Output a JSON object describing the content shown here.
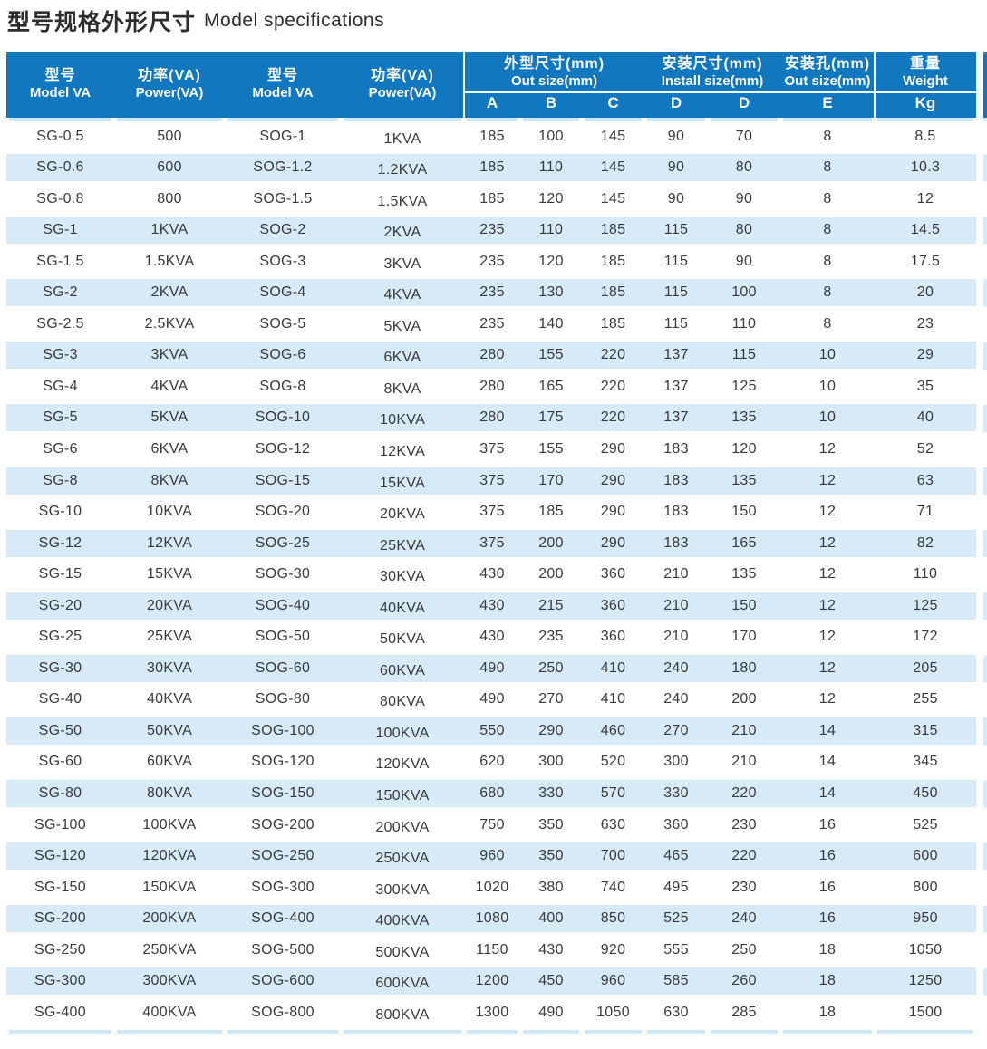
{
  "title": {
    "zh": "型号规格外形尺寸",
    "en": "Model specifications"
  },
  "header": {
    "model1": {
      "zh": "型号",
      "en": "Model VA"
    },
    "power1": {
      "zh": "功率(VA)",
      "en": "Power(VA)"
    },
    "model2": {
      "zh": "型号",
      "en": "Model VA"
    },
    "power2": {
      "zh": "功率(VA)",
      "en": "Power(VA)"
    },
    "group_out": {
      "zh": "外型尺寸(mm)",
      "en": "Out size(mm)"
    },
    "group_install": {
      "zh": "安装尺寸(mm)",
      "en": "Install size(mm)"
    },
    "group_hole": {
      "zh": "安装孔(mm)",
      "en": "Out size(mm)"
    },
    "group_weight": {
      "zh": "重量",
      "en": "Weight"
    },
    "letters": [
      "A",
      "B",
      "C",
      "D",
      "D",
      "E",
      "Kg"
    ]
  },
  "columns": [
    "model_sg",
    "power_sg",
    "model_sog",
    "power_sog",
    "A",
    "B",
    "C",
    "D",
    "D2",
    "E",
    "weight_kg"
  ],
  "rows": [
    [
      "SG-0.5",
      "500",
      "SOG-1",
      "1KVA",
      "185",
      "100",
      "145",
      "90",
      "70",
      "8",
      "8.5"
    ],
    [
      "SG-0.6",
      "600",
      "SOG-1.2",
      "1.2KVA",
      "185",
      "110",
      "145",
      "90",
      "80",
      "8",
      "10.3"
    ],
    [
      "SG-0.8",
      "800",
      "SOG-1.5",
      "1.5KVA",
      "185",
      "120",
      "145",
      "90",
      "90",
      "8",
      "12"
    ],
    [
      "SG-1",
      "1KVA",
      "SOG-2",
      "2KVA",
      "235",
      "110",
      "185",
      "115",
      "80",
      "8",
      "14.5"
    ],
    [
      "SG-1.5",
      "1.5KVA",
      "SOG-3",
      "3KVA",
      "235",
      "120",
      "185",
      "115",
      "90",
      "8",
      "17.5"
    ],
    [
      "SG-2",
      "2KVA",
      "SOG-4",
      "4KVA",
      "235",
      "130",
      "185",
      "115",
      "100",
      "8",
      "20"
    ],
    [
      "SG-2.5",
      "2.5KVA",
      "SOG-5",
      "5KVA",
      "235",
      "140",
      "185",
      "115",
      "110",
      "8",
      "23"
    ],
    [
      "SG-3",
      "3KVA",
      "SOG-6",
      "6KVA",
      "280",
      "155",
      "220",
      "137",
      "115",
      "10",
      "29"
    ],
    [
      "SG-4",
      "4KVA",
      "SOG-8",
      "8KVA",
      "280",
      "165",
      "220",
      "137",
      "125",
      "10",
      "35"
    ],
    [
      "SG-5",
      "5KVA",
      "SOG-10",
      "10KVA",
      "280",
      "175",
      "220",
      "137",
      "135",
      "10",
      "40"
    ],
    [
      "SG-6",
      "6KVA",
      "SOG-12",
      "12KVA",
      "375",
      "155",
      "290",
      "183",
      "120",
      "12",
      "52"
    ],
    [
      "SG-8",
      "8KVA",
      "SOG-15",
      "15KVA",
      "375",
      "170",
      "290",
      "183",
      "135",
      "12",
      "63"
    ],
    [
      "SG-10",
      "10KVA",
      "SOG-20",
      "20KVA",
      "375",
      "185",
      "290",
      "183",
      "150",
      "12",
      "71"
    ],
    [
      "SG-12",
      "12KVA",
      "SOG-25",
      "25KVA",
      "375",
      "200",
      "290",
      "183",
      "165",
      "12",
      "82"
    ],
    [
      "SG-15",
      "15KVA",
      "SOG-30",
      "30KVA",
      "430",
      "200",
      "360",
      "210",
      "135",
      "12",
      "110"
    ],
    [
      "SG-20",
      "20KVA",
      "SOG-40",
      "40KVA",
      "430",
      "215",
      "360",
      "210",
      "150",
      "12",
      "125"
    ],
    [
      "SG-25",
      "25KVA",
      "SOG-50",
      "50KVA",
      "430",
      "235",
      "360",
      "210",
      "170",
      "12",
      "172"
    ],
    [
      "SG-30",
      "30KVA",
      "SOG-60",
      "60KVA",
      "490",
      "250",
      "410",
      "240",
      "180",
      "12",
      "205"
    ],
    [
      "SG-40",
      "40KVA",
      "SOG-80",
      "80KVA",
      "490",
      "270",
      "410",
      "240",
      "200",
      "12",
      "255"
    ],
    [
      "SG-50",
      "50KVA",
      "SOG-100",
      "100KVA",
      "550",
      "290",
      "460",
      "270",
      "210",
      "14",
      "315"
    ],
    [
      "SG-60",
      "60KVA",
      "SOG-120",
      "120KVA",
      "620",
      "300",
      "520",
      "300",
      "210",
      "14",
      "345"
    ],
    [
      "SG-80",
      "80KVA",
      "SOG-150",
      "150KVA",
      "680",
      "330",
      "570",
      "330",
      "220",
      "14",
      "450"
    ],
    [
      "SG-100",
      "100KVA",
      "SOG-200",
      "200KVA",
      "750",
      "350",
      "630",
      "360",
      "230",
      "16",
      "525"
    ],
    [
      "SG-120",
      "120KVA",
      "SOG-250",
      "250KVA",
      "960",
      "350",
      "700",
      "465",
      "220",
      "16",
      "600"
    ],
    [
      "SG-150",
      "150KVA",
      "SOG-300",
      "300KVA",
      "1020",
      "380",
      "740",
      "495",
      "230",
      "16",
      "800"
    ],
    [
      "SG-200",
      "200KVA",
      "SOG-400",
      "400KVA",
      "1080",
      "400",
      "850",
      "525",
      "240",
      "16",
      "950"
    ],
    [
      "SG-250",
      "250KVA",
      "SOG-500",
      "500KVA",
      "1150",
      "430",
      "920",
      "555",
      "250",
      "18",
      "1050"
    ],
    [
      "SG-300",
      "300KVA",
      "SOG-600",
      "600KVA",
      "1200",
      "450",
      "960",
      "585",
      "260",
      "18",
      "1250"
    ],
    [
      "SG-400",
      "400KVA",
      "SOG-800",
      "800KVA",
      "1300",
      "490",
      "1050",
      "630",
      "285",
      "18",
      "1500"
    ]
  ],
  "colors": {
    "header_blue": "#1177bf",
    "row_blue": "#d6eaf8",
    "strip_blue": "#cfe8f8",
    "text": "#3a3a3a"
  }
}
